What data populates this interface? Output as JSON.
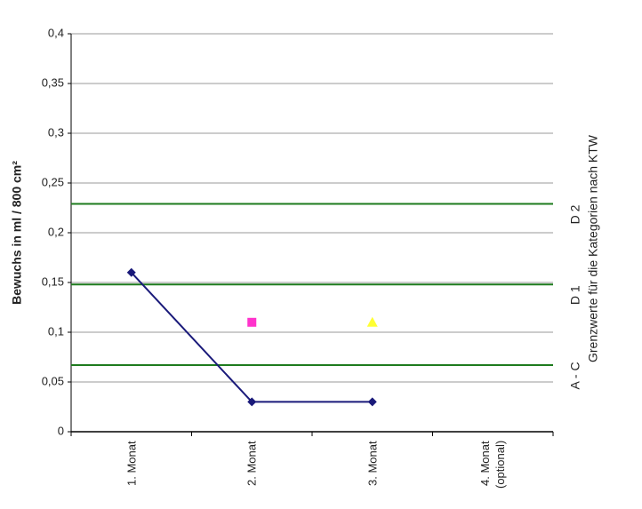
{
  "chart_data": {
    "type": "line",
    "y_label": "Bewuchs in ml / 800 cm²",
    "right_label": "Grenzwerte für die Kategorien nach KTW",
    "categories": [
      "1. Monat",
      "2. Monat",
      "3. Monat",
      "4. Monat (optional)"
    ],
    "series": [
      {
        "color": "#1a1a7a",
        "marker": "diamond",
        "line": true,
        "values": [
          0.16,
          0.03,
          0.03,
          null
        ]
      },
      {
        "color": "#ff33cc",
        "marker": "square",
        "line": false,
        "values": [
          null,
          0.11,
          null,
          null
        ]
      },
      {
        "color": "#ffff33",
        "marker": "triangle",
        "line": false,
        "values": [
          null,
          null,
          0.11,
          null
        ]
      }
    ],
    "thresholds": [
      {
        "label": "A - C",
        "value": 0.067,
        "color": "#1e7b1e"
      },
      {
        "label": "D 1",
        "value": 0.148,
        "color": "#1e7b1e"
      },
      {
        "label": "D 2",
        "value": 0.229,
        "color": "#1e7b1e"
      }
    ],
    "ylim": [
      0,
      0.4
    ],
    "yticks": [
      {
        "value": 0,
        "label": "0"
      },
      {
        "value": 0.05,
        "label": "0,05"
      },
      {
        "value": 0.1,
        "label": "0,1"
      },
      {
        "value": 0.15,
        "label": "0,15"
      },
      {
        "value": 0.2,
        "label": "0,2"
      },
      {
        "value": 0.25,
        "label": "0,25"
      },
      {
        "value": 0.3,
        "label": "0,3"
      },
      {
        "value": 0.35,
        "label": "0,35"
      },
      {
        "value": 0.4,
        "label": "0,4"
      }
    ],
    "grid": true
  }
}
